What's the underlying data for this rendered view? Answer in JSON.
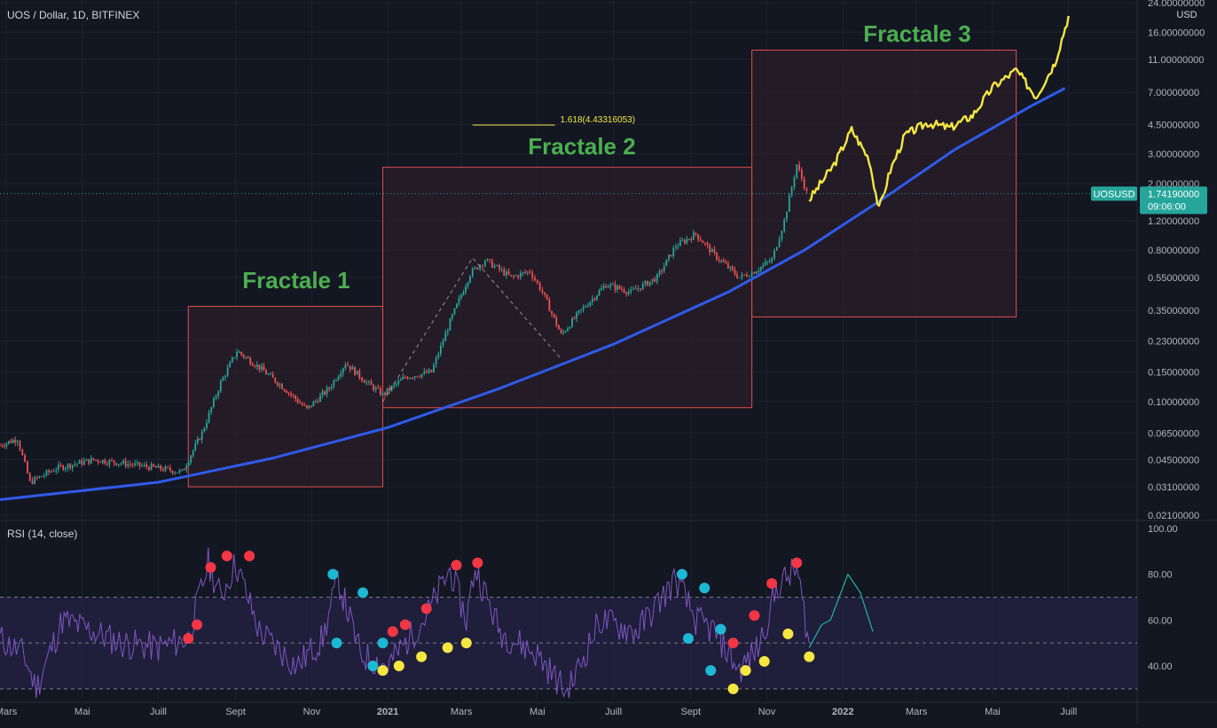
{
  "header": {
    "symbol_title": "UOS / Dollar, 1D, BITFINEX",
    "currency": "USD"
  },
  "colors": {
    "background": "#131722",
    "grid": "#1e2230",
    "candle_up": "#26a69a",
    "candle_down": "#ef5350",
    "regression_curve": "#2f5bea",
    "projection": "#f5e642",
    "fractal_box_border": "#e04d4d",
    "fractal_box_fill": "#2a1d28",
    "fractal_label": "#4caf50",
    "rsi_line": "#7e57c2",
    "rsi_band": "#2a2450",
    "price_tag": "#26a69a",
    "dot_red": "#f23645",
    "dot_cyan": "#1cb8d4",
    "dot_yellow": "#f5e642"
  },
  "price_label": {
    "symbol": "UOSUSD",
    "price": "1.74190000",
    "countdown": "09:06:00"
  },
  "fibonacci": {
    "label": "1.618(4.43316053)"
  },
  "rsi_legend": "RSI (14, close)",
  "chart_data": [
    {
      "type": "candlestick",
      "title": "UOS / Dollar, 1D, BITFINEX",
      "scale": "log",
      "ylim": [
        0.021,
        24.0
      ],
      "y_tick_labels": [
        "24.00000000",
        "16.00000000",
        "11.00000000",
        "7.00000000",
        "4.50000000",
        "3.00000000",
        "2.00000000",
        "1.20000000",
        "0.80000000",
        "0.55000000",
        "0.35000000",
        "0.23000000",
        "0.15000000",
        "0.10000000",
        "0.06500000",
        "0.04500000",
        "0.03100000",
        "0.02100000"
      ],
      "y_ticks": [
        24,
        16,
        11,
        7,
        4.5,
        3,
        2,
        1.2,
        0.8,
        0.55,
        0.35,
        0.23,
        0.15,
        0.1,
        0.065,
        0.045,
        0.031,
        0.021
      ],
      "x_ticks": [
        "Mars",
        "Mai",
        "Juill",
        "Sept",
        "Nov",
        "2021",
        "Mars",
        "Mai",
        "Juill",
        "Sept",
        "Nov",
        "2022",
        "Mars",
        "Mai",
        "Juill"
      ],
      "x_range": [
        "2020-02-25",
        "2022-08-25"
      ],
      "last_price": 1.7419,
      "price_path": [
        {
          "date": "2020-02-25",
          "price": 0.055
        },
        {
          "date": "2020-03-10",
          "price": 0.06
        },
        {
          "date": "2020-03-20",
          "price": 0.033
        },
        {
          "date": "2020-04-10",
          "price": 0.04
        },
        {
          "date": "2020-05-10",
          "price": 0.045
        },
        {
          "date": "2020-06-01",
          "price": 0.043
        },
        {
          "date": "2020-07-01",
          "price": 0.04
        },
        {
          "date": "2020-07-20",
          "price": 0.038
        },
        {
          "date": "2020-08-05",
          "price": 0.065
        },
        {
          "date": "2020-08-20",
          "price": 0.13
        },
        {
          "date": "2020-09-02",
          "price": 0.2
        },
        {
          "date": "2020-09-20",
          "price": 0.16
        },
        {
          "date": "2020-10-10",
          "price": 0.12
        },
        {
          "date": "2020-10-28",
          "price": 0.09
        },
        {
          "date": "2020-11-15",
          "price": 0.12
        },
        {
          "date": "2020-11-28",
          "price": 0.17
        },
        {
          "date": "2020-12-15",
          "price": 0.13
        },
        {
          "date": "2020-12-28",
          "price": 0.11
        },
        {
          "date": "2021-01-15",
          "price": 0.14
        },
        {
          "date": "2021-02-05",
          "price": 0.15
        },
        {
          "date": "2021-02-20",
          "price": 0.3
        },
        {
          "date": "2021-03-08",
          "price": 0.58
        },
        {
          "date": "2021-03-20",
          "price": 0.7
        },
        {
          "date": "2021-04-10",
          "price": 0.55
        },
        {
          "date": "2021-04-25",
          "price": 0.6
        },
        {
          "date": "2021-05-05",
          "price": 0.45
        },
        {
          "date": "2021-05-20",
          "price": 0.25
        },
        {
          "date": "2021-06-05",
          "price": 0.35
        },
        {
          "date": "2021-06-25",
          "price": 0.5
        },
        {
          "date": "2021-07-15",
          "price": 0.45
        },
        {
          "date": "2021-08-05",
          "price": 0.55
        },
        {
          "date": "2021-08-20",
          "price": 0.85
        },
        {
          "date": "2021-09-05",
          "price": 1.0
        },
        {
          "date": "2021-09-20",
          "price": 0.75
        },
        {
          "date": "2021-10-10",
          "price": 0.55
        },
        {
          "date": "2021-10-22",
          "price": 0.6
        },
        {
          "date": "2021-11-05",
          "price": 0.7
        },
        {
          "date": "2021-11-15",
          "price": 1.2
        },
        {
          "date": "2021-11-25",
          "price": 2.6
        },
        {
          "date": "2021-12-05",
          "price": 1.6
        }
      ],
      "projection_path": [
        {
          "date": "2021-12-05",
          "price": 1.6
        },
        {
          "date": "2021-12-25",
          "price": 2.6
        },
        {
          "date": "2022-01-08",
          "price": 4.2
        },
        {
          "date": "2022-01-22",
          "price": 2.8
        },
        {
          "date": "2022-01-30",
          "price": 1.4
        },
        {
          "date": "2022-02-08",
          "price": 2.4
        },
        {
          "date": "2022-02-20",
          "price": 3.9
        },
        {
          "date": "2022-03-10",
          "price": 4.6
        },
        {
          "date": "2022-03-28",
          "price": 4.3
        },
        {
          "date": "2022-04-15",
          "price": 5.1
        },
        {
          "date": "2022-05-01",
          "price": 7.5
        },
        {
          "date": "2022-05-20",
          "price": 9.5
        },
        {
          "date": "2022-06-05",
          "price": 6.6
        },
        {
          "date": "2022-06-20",
          "price": 10.5
        },
        {
          "date": "2022-07-01",
          "price": 20.0
        }
      ],
      "regression_curve": [
        {
          "date": "2020-02-25",
          "price": 0.026
        },
        {
          "date": "2020-07-01",
          "price": 0.033
        },
        {
          "date": "2020-10-01",
          "price": 0.046
        },
        {
          "date": "2021-01-01",
          "price": 0.07
        },
        {
          "date": "2021-04-01",
          "price": 0.12
        },
        {
          "date": "2021-07-01",
          "price": 0.22
        },
        {
          "date": "2021-10-01",
          "price": 0.45
        },
        {
          "date": "2021-12-01",
          "price": 0.8
        },
        {
          "date": "2022-02-01",
          "price": 1.6
        },
        {
          "date": "2022-04-01",
          "price": 3.2
        },
        {
          "date": "2022-06-01",
          "price": 5.8
        },
        {
          "date": "2022-06-28",
          "price": 7.4
        }
      ],
      "fractal_boxes": [
        {
          "label": "Fractale 1",
          "from": "2020-07-25",
          "to": "2020-12-28",
          "low": 0.031,
          "high": 0.37
        },
        {
          "label": "Fractale 2",
          "from": "2020-12-28",
          "to": "2021-10-20",
          "low": 0.092,
          "high": 2.5
        },
        {
          "label": "Fractale 3",
          "from": "2021-10-20",
          "to": "2022-05-20",
          "low": 0.32,
          "high": 12.5
        }
      ],
      "fib_level": {
        "date_from": "2021-03-10",
        "date_to": "2021-05-15",
        "price": 4.43316053
      },
      "dashed_path": [
        {
          "date": "2020-12-28",
          "price": 0.1
        },
        {
          "date": "2021-03-10",
          "price": 0.72
        },
        {
          "date": "2021-05-20",
          "price": 0.18
        }
      ]
    },
    {
      "type": "line",
      "title": "RSI (14, close)",
      "ylim": [
        25,
        100
      ],
      "y_tick_labels": [
        "100.00",
        "80.00",
        "60.00",
        "40.00"
      ],
      "y_ticks": [
        100,
        80,
        60,
        40
      ],
      "levels": [
        70,
        50,
        30
      ],
      "series": [
        {
          "values_path": [
            {
              "date": "2020-02-25",
              "rsi": 52
            },
            {
              "date": "2020-03-15",
              "rsi": 45
            },
            {
              "date": "2020-03-25",
              "rsi": 30
            },
            {
              "date": "2020-04-15",
              "rsi": 60
            },
            {
              "date": "2020-05-10",
              "rsi": 55
            },
            {
              "date": "2020-06-01",
              "rsi": 50
            },
            {
              "date": "2020-07-01",
              "rsi": 48
            },
            {
              "date": "2020-07-25",
              "rsi": 52
            },
            {
              "date": "2020-08-10",
              "rsi": 85
            },
            {
              "date": "2020-08-20",
              "rsi": 70
            },
            {
              "date": "2020-09-01",
              "rsi": 85
            },
            {
              "date": "2020-09-20",
              "rsi": 55
            },
            {
              "date": "2020-10-20",
              "rsi": 40
            },
            {
              "date": "2020-11-10",
              "rsi": 52
            },
            {
              "date": "2020-11-22",
              "rsi": 78
            },
            {
              "date": "2020-12-10",
              "rsi": 45
            },
            {
              "date": "2021-01-01",
              "rsi": 40
            },
            {
              "date": "2021-02-01",
              "rsi": 62
            },
            {
              "date": "2021-02-20",
              "rsi": 82
            },
            {
              "date": "2021-03-05",
              "rsi": 60
            },
            {
              "date": "2021-03-12",
              "rsi": 83
            },
            {
              "date": "2021-04-01",
              "rsi": 55
            },
            {
              "date": "2021-05-01",
              "rsi": 45
            },
            {
              "date": "2021-05-25",
              "rsi": 28
            },
            {
              "date": "2021-06-20",
              "rsi": 60
            },
            {
              "date": "2021-07-20",
              "rsi": 55
            },
            {
              "date": "2021-08-20",
              "rsi": 78
            },
            {
              "date": "2021-09-05",
              "rsi": 60
            },
            {
              "date": "2021-09-20",
              "rsi": 55
            },
            {
              "date": "2021-10-10",
              "rsi": 38
            },
            {
              "date": "2021-10-25",
              "rsi": 48
            },
            {
              "date": "2021-11-10",
              "rsi": 75
            },
            {
              "date": "2021-11-25",
              "rsi": 82
            },
            {
              "date": "2021-12-05",
              "rsi": 50
            }
          ]
        },
        {
          "values_path": [
            {
              "date": "2021-12-05",
              "rsi": 48
            },
            {
              "date": "2021-12-15",
              "rsi": 58
            },
            {
              "date": "2021-12-22",
              "rsi": 60
            },
            {
              "date": "2022-01-05",
              "rsi": 80
            },
            {
              "date": "2022-01-15",
              "rsi": 72
            },
            {
              "date": "2022-01-25",
              "rsi": 55
            }
          ]
        }
      ],
      "markers": [
        {
          "date": "2020-07-25",
          "rsi": 52,
          "color": "red"
        },
        {
          "date": "2020-08-01",
          "rsi": 58,
          "color": "red"
        },
        {
          "date": "2020-08-12",
          "rsi": 83,
          "color": "red"
        },
        {
          "date": "2020-08-25",
          "rsi": 88,
          "color": "red"
        },
        {
          "date": "2020-09-12",
          "rsi": 88,
          "color": "red"
        },
        {
          "date": "2020-11-18",
          "rsi": 80,
          "color": "cyan"
        },
        {
          "date": "2020-11-21",
          "rsi": 50,
          "color": "cyan"
        },
        {
          "date": "2020-12-12",
          "rsi": 72,
          "color": "cyan"
        },
        {
          "date": "2020-12-20",
          "rsi": 40,
          "color": "cyan"
        },
        {
          "date": "2020-12-28",
          "rsi": 50,
          "color": "cyan"
        },
        {
          "date": "2020-12-28",
          "rsi": 38,
          "color": "yellow"
        },
        {
          "date": "2021-01-05",
          "rsi": 55,
          "color": "red"
        },
        {
          "date": "2021-01-10",
          "rsi": 40,
          "color": "yellow"
        },
        {
          "date": "2021-01-15",
          "rsi": 58,
          "color": "red"
        },
        {
          "date": "2021-01-28",
          "rsi": 44,
          "color": "yellow"
        },
        {
          "date": "2021-02-01",
          "rsi": 65,
          "color": "red"
        },
        {
          "date": "2021-02-18",
          "rsi": 48,
          "color": "yellow"
        },
        {
          "date": "2021-02-25",
          "rsi": 84,
          "color": "red"
        },
        {
          "date": "2021-03-05",
          "rsi": 50,
          "color": "yellow"
        },
        {
          "date": "2021-03-14",
          "rsi": 85,
          "color": "red"
        },
        {
          "date": "2021-08-25",
          "rsi": 80,
          "color": "cyan"
        },
        {
          "date": "2021-08-30",
          "rsi": 52,
          "color": "cyan"
        },
        {
          "date": "2021-09-12",
          "rsi": 74,
          "color": "cyan"
        },
        {
          "date": "2021-09-17",
          "rsi": 38,
          "color": "cyan"
        },
        {
          "date": "2021-09-25",
          "rsi": 56,
          "color": "cyan"
        },
        {
          "date": "2021-10-05",
          "rsi": 50,
          "color": "red"
        },
        {
          "date": "2021-10-05",
          "rsi": 30,
          "color": "yellow"
        },
        {
          "date": "2021-10-15",
          "rsi": 38,
          "color": "yellow"
        },
        {
          "date": "2021-10-22",
          "rsi": 62,
          "color": "red"
        },
        {
          "date": "2021-10-30",
          "rsi": 42,
          "color": "yellow"
        },
        {
          "date": "2021-11-05",
          "rsi": 76,
          "color": "red"
        },
        {
          "date": "2021-11-18",
          "rsi": 54,
          "color": "yellow"
        },
        {
          "date": "2021-11-25",
          "rsi": 85,
          "color": "red"
        },
        {
          "date": "2021-12-05",
          "rsi": 44,
          "color": "yellow"
        }
      ]
    }
  ]
}
